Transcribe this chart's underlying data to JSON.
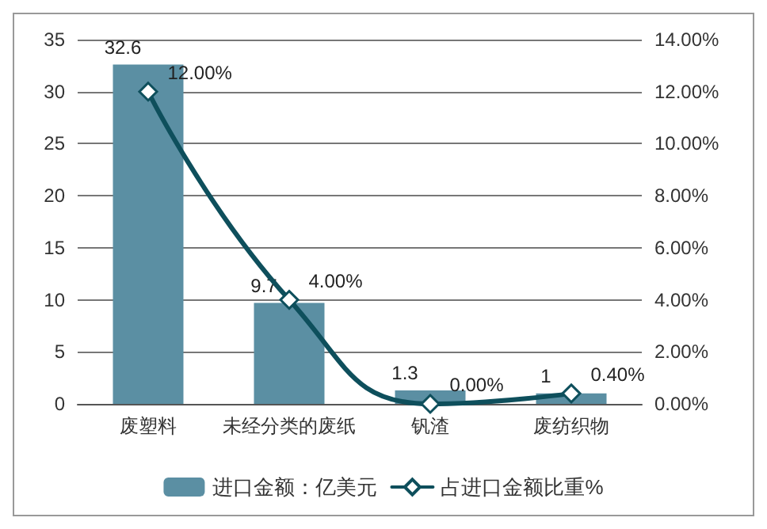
{
  "chart_data": {
    "type": "bar",
    "categories": [
      "废塑料",
      "未经分类的废纸",
      "钒渣",
      "废纺织物"
    ],
    "series": [
      {
        "name": "进口金额：亿美元",
        "color": "#5b8fa3",
        "values": [
          32.6,
          9.7,
          1.3,
          1
        ],
        "value_labels": [
          "32.6",
          "9.7",
          "1.3",
          "1"
        ]
      },
      {
        "name": "占进口金额比重%",
        "type": "line",
        "axis": "y2",
        "color": "#0e4f5c",
        "marker": "diamond",
        "values": [
          12,
          4,
          0,
          0.4
        ],
        "value_labels": [
          "12.00%",
          "4.00%",
          "0.00%",
          "0.40%"
        ]
      }
    ],
    "ylim": [
      0,
      35
    ],
    "yticks": [
      0,
      5,
      10,
      15,
      20,
      25,
      30,
      35
    ],
    "y2lim": [
      0,
      14
    ],
    "y2ticks": [
      {
        "value": 0,
        "label": "0.00%"
      },
      {
        "value": 2,
        "label": "2.00%"
      },
      {
        "value": 4,
        "label": "4.00%"
      },
      {
        "value": 6,
        "label": "6.00%"
      },
      {
        "value": 8,
        "label": "8.00%"
      },
      {
        "value": 10,
        "label": "10.00%"
      },
      {
        "value": 12,
        "label": "12.00%"
      },
      {
        "value": 14,
        "label": "14.00%"
      }
    ],
    "grid": "y",
    "legend": "bottom"
  }
}
